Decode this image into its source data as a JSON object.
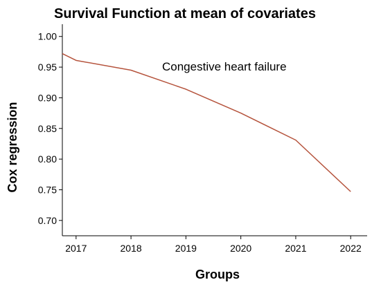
{
  "chart_data": {
    "type": "line",
    "title": "Survival Function at mean of covariates",
    "xlabel": "Groups",
    "ylabel": "Cox regression",
    "annotation": "Congestive heart failure",
    "ylim": [
      0.675,
      1.02
    ],
    "xlim": [
      2016.75,
      2022.3
    ],
    "x_ticks": [
      2017,
      2018,
      2019,
      2020,
      2021,
      2022
    ],
    "x_tick_labels": [
      "2017",
      "2018",
      "2019",
      "2020",
      "2021",
      "2022"
    ],
    "y_ticks": [
      0.7,
      0.75,
      0.8,
      0.85,
      0.9,
      0.95,
      1.0
    ],
    "y_tick_labels": [
      "0.70",
      "0.75",
      "0.80",
      "0.85",
      "0.90",
      "0.95",
      "1.00"
    ],
    "grid": false,
    "series": [
      {
        "color": "#b5533c",
        "points": [
          {
            "x": 2016.75,
            "y": 0.972
          },
          {
            "x": 2017.0,
            "y": 0.961
          },
          {
            "x": 2018.0,
            "y": 0.945
          },
          {
            "x": 2019.0,
            "y": 0.914
          },
          {
            "x": 2020.0,
            "y": 0.875
          },
          {
            "x": 2021.0,
            "y": 0.831
          },
          {
            "x": 2022.0,
            "y": 0.747
          }
        ]
      }
    ]
  }
}
